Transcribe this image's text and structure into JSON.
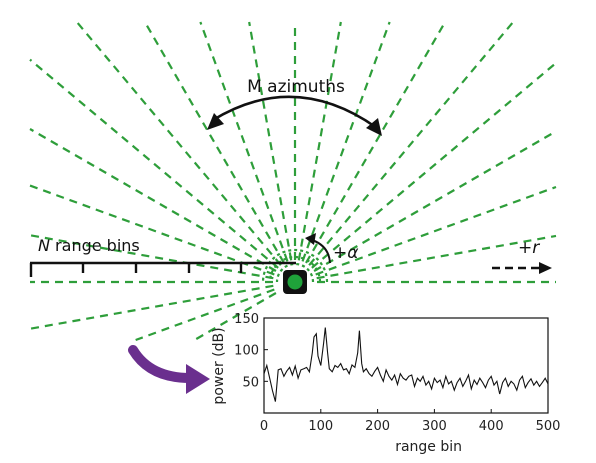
{
  "labels": {
    "azimuths": "M azimuths",
    "range_bins_var": "N",
    "range_bins_text": " range bins",
    "alpha": "+α",
    "range_dir": "+r"
  },
  "colors": {
    "azimuth_lines": "#2e9e3a",
    "radar_marker": "#1fa23a",
    "arrow": "#6a2f8e",
    "ink": "#111111"
  },
  "icons": {
    "radar": "radar-square-icon",
    "arrow": "curved-arrow-icon"
  },
  "chart_data": {
    "type": "line",
    "xlabel": "range bin",
    "ylabel": "power (dB)",
    "xlim": [
      0,
      500
    ],
    "ylim": [
      0,
      150
    ],
    "xticks": [
      "0",
      "100",
      "200",
      "300",
      "400",
      "500"
    ],
    "yticks": [
      "50",
      "100",
      "150"
    ],
    "grid": false,
    "series": [
      {
        "x": [
          0,
          5,
          10,
          15,
          20,
          25,
          30,
          35,
          40,
          45,
          50,
          55,
          60,
          65,
          70,
          75,
          80,
          85,
          88,
          92,
          95,
          100,
          105,
          108,
          112,
          115,
          120,
          125,
          130,
          135,
          140,
          145,
          150,
          155,
          160,
          165,
          168,
          172,
          175,
          180,
          185,
          190,
          195,
          200,
          205,
          210,
          215,
          220,
          225,
          230,
          235,
          240,
          245,
          250,
          255,
          260,
          265,
          270,
          275,
          280,
          285,
          290,
          295,
          300,
          305,
          310,
          315,
          320,
          325,
          330,
          335,
          340,
          345,
          350,
          355,
          360,
          365,
          370,
          375,
          380,
          385,
          390,
          395,
          400,
          405,
          410,
          415,
          420,
          425,
          430,
          435,
          440,
          445,
          450,
          455,
          460,
          465,
          470,
          475,
          480,
          485,
          490,
          495,
          500
        ],
        "y": [
          62,
          75,
          55,
          35,
          18,
          68,
          70,
          58,
          66,
          72,
          60,
          74,
          55,
          68,
          70,
          72,
          65,
          95,
          120,
          125,
          90,
          75,
          110,
          135,
          95,
          70,
          65,
          75,
          72,
          78,
          68,
          70,
          62,
          76,
          72,
          95,
          130,
          78,
          65,
          70,
          62,
          58,
          66,
          72,
          60,
          50,
          68,
          58,
          52,
          60,
          45,
          62,
          55,
          52,
          58,
          60,
          42,
          55,
          50,
          58,
          44,
          50,
          38,
          55,
          48,
          52,
          40,
          58,
          46,
          50,
          36,
          48,
          55,
          42,
          50,
          60,
          38,
          52,
          45,
          55,
          48,
          40,
          52,
          58,
          44,
          50,
          30,
          48,
          55,
          42,
          50,
          46,
          36,
          52,
          58,
          40,
          48,
          54,
          44,
          50,
          42,
          48,
          55,
          46
        ]
      }
    ]
  }
}
